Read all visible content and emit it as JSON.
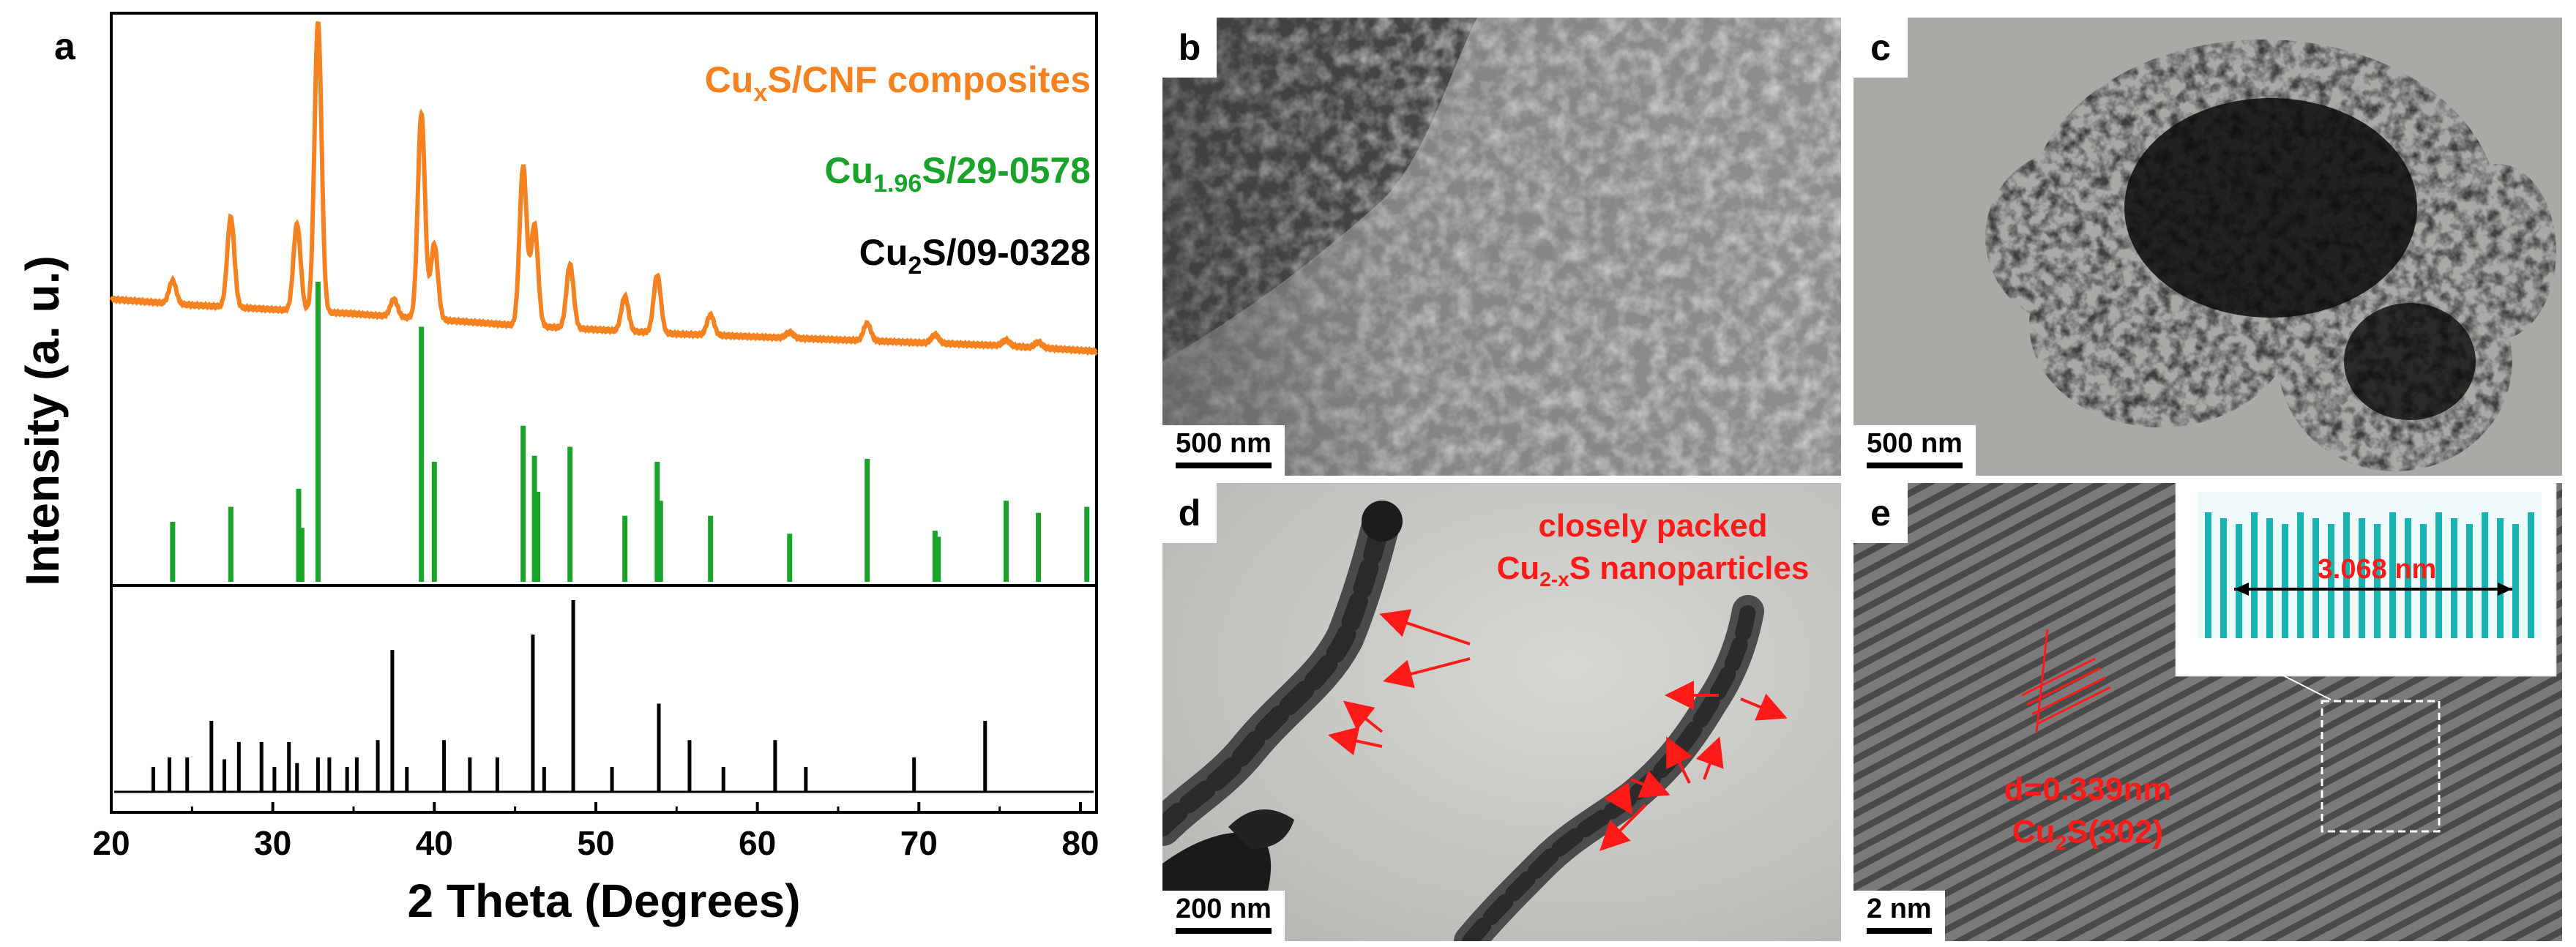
{
  "panels": {
    "a": {
      "letter": "a",
      "legend": [
        {
          "base": "Cu",
          "sub": "x",
          "rest": "S/CNF composites",
          "color": "#f58220"
        },
        {
          "base": "Cu",
          "sub": "1.96",
          "rest": "S/29-0578",
          "color": "#1aa32a"
        },
        {
          "base": "Cu",
          "sub": "2",
          "rest": "S/09-0328",
          "color": "#000000"
        }
      ]
    },
    "b": {
      "letter": "b",
      "scale": "500 nm"
    },
    "c": {
      "letter": "c",
      "scale": "500 nm"
    },
    "d": {
      "letter": "d",
      "scale": "200 nm",
      "label_line1": "closely packed",
      "label_line2_base": "Cu",
      "label_line2_sub": "2-x",
      "label_line2_rest": "S nanoparticles"
    },
    "e": {
      "letter": "e",
      "scale": "2 nm",
      "d_spacing": "d=0.339nm",
      "phase_base": "Cu",
      "phase_sub": "2",
      "phase_rest": "S(302)",
      "inset_label": "3.068 nm"
    }
  },
  "chart_data": {
    "type": "line",
    "xlabel": "2 Theta (Degrees)",
    "ylabel": "Intensity (a. u.)",
    "xlim": [
      20,
      81
    ],
    "xticks": [
      20,
      30,
      40,
      50,
      60,
      70,
      80
    ],
    "xtick_labels": [
      "20",
      "30",
      "40",
      "50",
      "60",
      "70",
      "80"
    ],
    "colors": {
      "composite": "#f58220",
      "ref1": "#1aa32a",
      "ref2": "#000000"
    },
    "composite_pattern": {
      "name": "CuxS/CNF composites",
      "baseline": [
        [
          20,
          0.22
        ],
        [
          25,
          0.2
        ],
        [
          35,
          0.17
        ],
        [
          45,
          0.13
        ],
        [
          55,
          0.1
        ],
        [
          65,
          0.08
        ],
        [
          75,
          0.06
        ],
        [
          81,
          0.04
        ]
      ],
      "peaks": [
        [
          23.8,
          0.08
        ],
        [
          27.4,
          0.31
        ],
        [
          31.5,
          0.3
        ],
        [
          32.8,
          1.0
        ],
        [
          37.5,
          0.06
        ],
        [
          39.2,
          0.71
        ],
        [
          40.0,
          0.26
        ],
        [
          45.5,
          0.55
        ],
        [
          46.2,
          0.35
        ],
        [
          48.4,
          0.22
        ],
        [
          51.8,
          0.12
        ],
        [
          53.8,
          0.2
        ],
        [
          57.1,
          0.07
        ],
        [
          62.0,
          0.02
        ],
        [
          66.8,
          0.06
        ],
        [
          71.0,
          0.03
        ],
        [
          75.4,
          0.02
        ],
        [
          77.4,
          0.02
        ]
      ]
    },
    "reference_1": {
      "name": "Cu1.96S/29-0578",
      "positions": [
        23.8,
        27.4,
        31.6,
        31.8,
        32.8,
        39.2,
        40.0,
        45.5,
        46.2,
        46.4,
        48.4,
        51.8,
        53.8,
        54.0,
        57.1,
        62.0,
        66.8,
        71.0,
        71.2,
        75.4,
        77.4,
        80.4
      ],
      "intensities": [
        0.2,
        0.25,
        0.31,
        0.18,
        1.0,
        0.85,
        0.4,
        0.52,
        0.42,
        0.3,
        0.45,
        0.22,
        0.4,
        0.27,
        0.22,
        0.16,
        0.41,
        0.17,
        0.15,
        0.27,
        0.23,
        0.25
      ]
    },
    "reference_2": {
      "name": "Cu2S/09-0328",
      "positions": [
        22.6,
        23.6,
        24.7,
        26.2,
        27.0,
        27.9,
        29.3,
        30.1,
        31.0,
        31.5,
        32.8,
        33.5,
        34.6,
        35.2,
        36.5,
        37.4,
        38.3,
        40.6,
        42.2,
        43.9,
        46.1,
        46.8,
        48.6,
        51.0,
        53.9,
        55.8,
        57.9,
        61.1,
        63.0,
        69.7,
        74.1
      ],
      "intensities": [
        0.13,
        0.18,
        0.18,
        0.37,
        0.17,
        0.26,
        0.26,
        0.13,
        0.26,
        0.15,
        0.18,
        0.18,
        0.13,
        0.18,
        0.27,
        0.74,
        0.13,
        0.27,
        0.18,
        0.18,
        0.82,
        0.13,
        1.0,
        0.13,
        0.46,
        0.27,
        0.13,
        0.27,
        0.13,
        0.18,
        0.37
      ]
    }
  }
}
